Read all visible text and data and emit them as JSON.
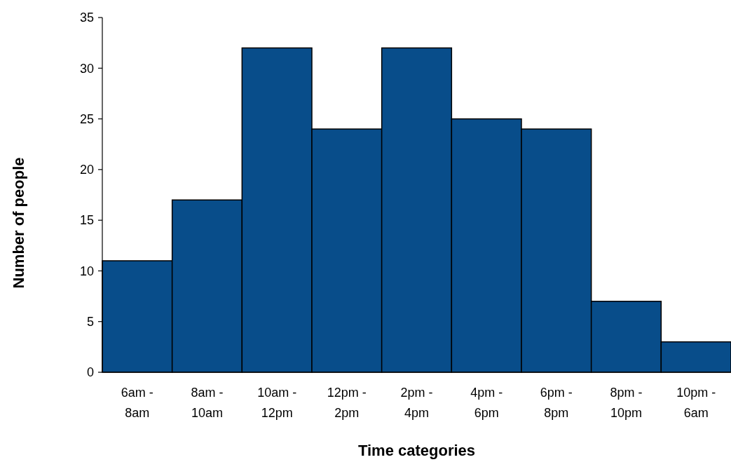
{
  "chart_data": {
    "type": "bar",
    "xlabel": "Time categories",
    "ylabel": "Number of people",
    "categories": [
      "6am - 8am",
      "8am - 10am",
      "10am - 12pm",
      "12pm - 2pm",
      "2pm - 4pm",
      "4pm - 6pm",
      "6pm - 8pm",
      "8pm - 10pm",
      "10pm - 6am"
    ],
    "values": [
      11,
      17,
      32,
      24,
      32,
      25,
      24,
      7,
      3
    ],
    "color": "#084d8a",
    "ylim": [
      0,
      35
    ],
    "yticks": [
      0,
      5,
      10,
      15,
      20,
      25,
      30,
      35
    ],
    "grid": false
  }
}
